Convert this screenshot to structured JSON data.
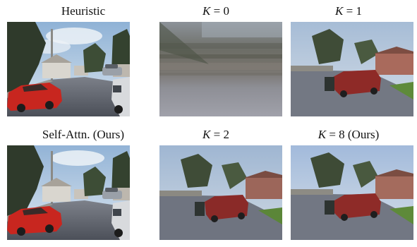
{
  "figure": {
    "panels": [
      {
        "id": "heuristic",
        "caption": "Heuristic"
      },
      {
        "id": "k0",
        "caption_var": "K",
        "caption_rest": " = 0"
      },
      {
        "id": "k1",
        "caption_var": "K",
        "caption_rest": " = 1"
      },
      {
        "id": "self-attn",
        "caption": "Self-Attn. (Ours)"
      },
      {
        "id": "k2",
        "caption_var": "K",
        "caption_rest": " = 2"
      },
      {
        "id": "k8",
        "caption_var": "K",
        "caption_rest": " = 8 (Ours)"
      }
    ],
    "colors": {
      "sky": "#b9cde0",
      "road": "#6f7480",
      "car_red": "#c8261f",
      "tree": "#3a4a34",
      "grass": "#5e8a3a"
    }
  }
}
